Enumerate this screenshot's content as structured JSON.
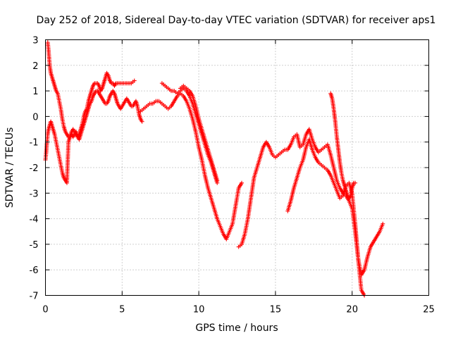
{
  "chart_data": {
    "type": "scatter",
    "title": "Day 252 of 2018, Sidereal Day-to-day VTEC variation (SDTVAR) for receiver aps1",
    "xlabel": "GPS time / hours",
    "ylabel": "SDTVAR / TECUs",
    "xlim": [
      0,
      25
    ],
    "ylim": [
      -7,
      3
    ],
    "xticks": [
      "0",
      "5",
      "10",
      "15",
      "20",
      "25"
    ],
    "yticks": [
      "3",
      "2",
      "1",
      "0",
      "-1",
      "-2",
      "-3",
      "-4",
      "-5",
      "-6",
      "-7"
    ],
    "grid": true,
    "marker": "plus",
    "color": "#ff0000",
    "series": [
      {
        "x": [
          0.0,
          0.05,
          0.1,
          0.15,
          0.2,
          0.25,
          0.3,
          0.35,
          0.4,
          0.5,
          0.6,
          0.7,
          0.8,
          0.9,
          1.0,
          1.1,
          1.2,
          1.3,
          1.4,
          1.5,
          1.6,
          1.7,
          1.8,
          1.9,
          2.0,
          2.1,
          2.2,
          2.3,
          2.4,
          2.5,
          2.6,
          2.7,
          2.8,
          2.9,
          3.0,
          3.1,
          3.2,
          3.3,
          3.4,
          3.5,
          3.6,
          3.7,
          3.8,
          3.9,
          4.0,
          4.1,
          4.2,
          4.3,
          4.4,
          4.5,
          4.6,
          4.7,
          4.8,
          4.9,
          5.0,
          5.2,
          5.4,
          5.6,
          5.8
        ],
        "y": [
          -1.7,
          -1.4,
          -1.0,
          -0.7,
          -0.5,
          -0.4,
          -0.3,
          -0.2,
          -0.3,
          -0.5,
          -0.7,
          -1.0,
          -1.3,
          -1.6,
          -1.9,
          -2.2,
          -2.4,
          -2.5,
          -2.6,
          -1.0,
          -0.8,
          -0.6,
          -0.5,
          -0.6,
          -0.7,
          -0.8,
          -0.7,
          -0.5,
          -0.3,
          0.0,
          0.2,
          0.3,
          0.6,
          0.8,
          1.0,
          1.2,
          1.3,
          1.3,
          1.3,
          1.2,
          1.0,
          1.1,
          1.3,
          1.5,
          1.7,
          1.6,
          1.4,
          1.3,
          1.3,
          1.2,
          1.3,
          1.3,
          1.3,
          1.3,
          1.3,
          1.3,
          1.3,
          1.3,
          1.4
        ]
      },
      {
        "x": [
          0.15,
          0.2,
          0.25,
          0.3,
          0.35,
          0.4,
          0.5,
          0.6,
          0.7,
          0.8,
          0.9,
          1.0,
          1.1,
          1.2,
          1.3,
          1.4,
          1.5,
          1.6,
          1.7,
          1.8,
          1.9,
          2.0,
          2.1,
          2.2,
          2.3,
          2.4,
          2.5,
          2.6,
          2.7,
          2.8,
          2.9,
          3.0,
          3.1,
          3.2,
          3.3,
          3.4,
          3.5,
          3.6,
          3.7,
          3.8,
          3.9,
          4.0,
          4.1,
          4.2,
          4.3,
          4.4,
          4.5,
          4.6,
          4.7,
          4.8,
          4.9,
          5.0,
          5.1,
          5.2,
          5.3,
          5.4,
          5.5,
          5.6,
          5.7,
          5.8,
          5.9,
          6.0,
          6.1,
          6.2,
          6.3
        ],
        "y": [
          2.9,
          2.6,
          2.2,
          1.9,
          1.7,
          1.6,
          1.4,
          1.2,
          1.0,
          0.9,
          0.6,
          0.3,
          -0.1,
          -0.4,
          -0.6,
          -0.7,
          -0.8,
          -0.8,
          -0.7,
          -0.8,
          -0.7,
          -0.6,
          -0.8,
          -0.9,
          -0.7,
          -0.5,
          -0.3,
          -0.1,
          0.1,
          0.3,
          0.5,
          0.6,
          0.8,
          0.9,
          1.0,
          1.0,
          0.9,
          0.8,
          0.7,
          0.6,
          0.5,
          0.5,
          0.6,
          0.8,
          0.9,
          1.0,
          0.9,
          0.7,
          0.5,
          0.4,
          0.3,
          0.4,
          0.5,
          0.6,
          0.7,
          0.6,
          0.5,
          0.4,
          0.4,
          0.5,
          0.6,
          0.4,
          0.1,
          -0.1,
          -0.2
        ]
      },
      {
        "x": [
          6.2,
          6.4,
          6.6,
          6.8,
          7.0,
          7.2,
          7.4,
          7.6,
          7.8,
          8.0,
          8.2,
          8.4,
          8.6,
          8.8,
          9.0,
          9.2,
          9.4,
          9.6,
          9.8,
          10.0,
          10.2,
          10.4,
          10.6,
          10.8,
          11.0,
          11.2,
          11.4,
          11.6,
          11.8,
          12.0,
          12.2,
          12.4,
          12.6,
          12.8
        ],
        "y": [
          0.2,
          0.3,
          0.4,
          0.5,
          0.5,
          0.6,
          0.6,
          0.5,
          0.4,
          0.3,
          0.4,
          0.6,
          0.8,
          0.9,
          0.8,
          0.6,
          0.3,
          -0.1,
          -0.6,
          -1.2,
          -1.7,
          -2.3,
          -2.8,
          -3.2,
          -3.6,
          -4.0,
          -4.3,
          -4.6,
          -4.8,
          -4.5,
          -4.2,
          -3.5,
          -2.8,
          -2.6
        ]
      },
      {
        "x": [
          7.6,
          7.8,
          8.0,
          8.2,
          8.4,
          8.6,
          8.8,
          9.0,
          9.2,
          9.4,
          9.6,
          9.8,
          10.0,
          10.2,
          10.4,
          10.6,
          10.8,
          11.0,
          11.2
        ],
        "y": [
          1.3,
          1.2,
          1.1,
          1.0,
          1.0,
          0.9,
          1.0,
          1.1,
          1.0,
          0.8,
          0.5,
          0.1,
          -0.3,
          -0.7,
          -1.1,
          -1.5,
          -1.8,
          -2.2,
          -2.6
        ]
      },
      {
        "x": [
          8.8,
          9.0,
          9.2,
          9.4,
          9.6,
          9.8,
          10.0,
          10.2,
          10.4,
          10.6,
          10.8,
          11.0,
          11.2
        ],
        "y": [
          1.1,
          1.2,
          1.1,
          1.0,
          0.8,
          0.4,
          -0.1,
          -0.5,
          -0.9,
          -1.3,
          -1.7,
          -2.1,
          -2.5
        ]
      },
      {
        "x": [
          12.6,
          12.8,
          13.0,
          13.2,
          13.4,
          13.6,
          13.8,
          14.0,
          14.2,
          14.4,
          14.6,
          14.8,
          15.0,
          15.2,
          15.4,
          15.6,
          15.8,
          16.0,
          16.2,
          16.4,
          16.6,
          16.8,
          17.0,
          17.2,
          17.4,
          17.6,
          17.8,
          18.0,
          18.2,
          18.4,
          18.6,
          18.8,
          19.0,
          19.2,
          19.4,
          19.6,
          19.8,
          20.0,
          20.2,
          20.4,
          20.6,
          20.8,
          21.0,
          21.2,
          21.4,
          21.6,
          21.8,
          22.0
        ],
        "y": [
          -5.1,
          -5.0,
          -4.6,
          -4.0,
          -3.2,
          -2.4,
          -2.0,
          -1.6,
          -1.2,
          -1.0,
          -1.2,
          -1.5,
          -1.6,
          -1.5,
          -1.4,
          -1.3,
          -1.3,
          -1.1,
          -0.8,
          -0.7,
          -1.2,
          -1.1,
          -0.7,
          -0.5,
          -0.9,
          -1.2,
          -1.4,
          -1.3,
          -1.2,
          -1.1,
          -1.5,
          -2.0,
          -2.5,
          -2.8,
          -3.0,
          -3.1,
          -3.3,
          -3.6,
          -4.5,
          -5.6,
          -6.2,
          -6.0,
          -5.5,
          -5.1,
          -4.9,
          -4.7,
          -4.5,
          -4.2
        ]
      },
      {
        "x": [
          15.8,
          16.0,
          16.2,
          16.4,
          16.6,
          16.8,
          17.0,
          17.2,
          17.4,
          17.6,
          17.8,
          18.0,
          18.2,
          18.4,
          18.6,
          18.8,
          19.0,
          19.2,
          19.4,
          19.6,
          19.8,
          20.0,
          20.2,
          20.4,
          20.6,
          20.8
        ],
        "y": [
          -3.7,
          -3.3,
          -2.8,
          -2.4,
          -2.0,
          -1.7,
          -1.2,
          -0.9,
          -1.3,
          -1.6,
          -1.8,
          -1.9,
          -2.0,
          -2.1,
          -2.3,
          -2.6,
          -2.9,
          -3.2,
          -3.1,
          -2.7,
          -2.6,
          -3.0,
          -4.2,
          -5.6,
          -6.8,
          -7.0
        ]
      },
      {
        "x": [
          18.6,
          18.7,
          18.8,
          18.9,
          19.0,
          19.1,
          19.2,
          19.3,
          19.4,
          19.5,
          19.6,
          19.7,
          19.8,
          19.9,
          20.0,
          20.1,
          20.2
        ],
        "y": [
          0.9,
          0.7,
          0.3,
          -0.2,
          -0.8,
          -1.3,
          -1.8,
          -2.2,
          -2.5,
          -2.7,
          -2.9,
          -3.1,
          -3.2,
          -3.1,
          -2.8,
          -2.6,
          -2.6
        ]
      }
    ]
  }
}
